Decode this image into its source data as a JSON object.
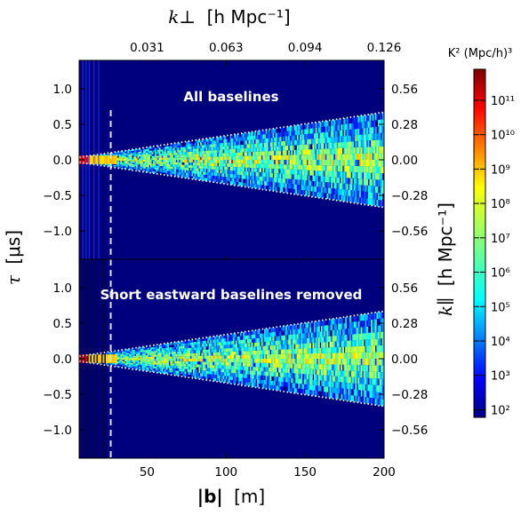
{
  "chart_data": {
    "type": "heatmap",
    "panels": [
      {
        "annotation": "All baselines"
      },
      {
        "annotation": "Short eastward baselines removed"
      }
    ],
    "x_axis": {
      "label_symbol": "|b|",
      "label_unit": "[m]",
      "range": [
        7,
        200
      ],
      "ticks": [
        "50",
        "100",
        "150",
        "200"
      ],
      "tick_values": [
        50,
        100,
        150,
        200
      ]
    },
    "y_axis_left": {
      "label_symbol": "τ",
      "label_unit": "[μs]",
      "range": [
        -1.4,
        1.4
      ],
      "ticks": [
        "1.0",
        "0.5",
        "0.0",
        "−0.5",
        "−1.0"
      ],
      "tick_values": [
        1.0,
        0.5,
        0.0,
        -0.5,
        -1.0
      ]
    },
    "y_axis_right": {
      "label_symbol": "k∥",
      "label_unit": "[h Mpc⁻¹]",
      "ticks": [
        "0.56",
        "0.28",
        "0.00",
        "−0.28",
        "−0.56"
      ],
      "tick_tau": [
        1.0,
        0.5,
        0.0,
        -0.5,
        -1.0
      ]
    },
    "x_axis_top": {
      "label_symbol": "k⊥",
      "label_unit": "[h Mpc⁻¹]",
      "ticks": [
        "0.031",
        "0.063",
        "0.094",
        "0.126"
      ],
      "tick_baseline_m": [
        50,
        100,
        150,
        200
      ]
    },
    "colorbar": {
      "title": "K² (Mpc/h)³",
      "scale": "log",
      "range": [
        60,
        800000000000.0
      ],
      "ticks": [
        "10¹¹",
        "10¹⁰",
        "10⁹",
        "10⁸",
        "10⁷",
        "10⁶",
        "10⁵",
        "10⁴",
        "10³",
        "10²"
      ],
      "tick_exponents": [
        11,
        10,
        9,
        8,
        7,
        6,
        5,
        4,
        3,
        2
      ],
      "colormap": "jet"
    },
    "dashed_vertical_line_baseline_m": 27,
    "horizon_limit_dotted_lines": [
      {
        "baseline_m": 7,
        "tau_us": 0.035
      },
      {
        "baseline_m": 200,
        "tau_us": 0.67
      }
    ],
    "background_color": "#00007f"
  }
}
